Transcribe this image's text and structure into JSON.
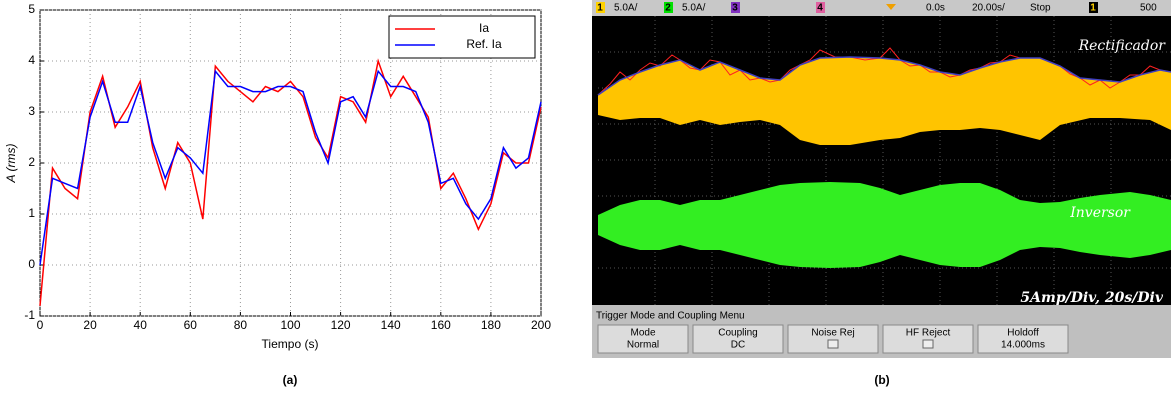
{
  "chart_data": {
    "type": "line",
    "xlabel": "Tiempo (s)",
    "ylabel": "A (rms)",
    "x": [
      0,
      5,
      10,
      15,
      20,
      25,
      30,
      35,
      40,
      45,
      50,
      55,
      60,
      65,
      70,
      75,
      80,
      85,
      90,
      95,
      100,
      105,
      110,
      115,
      120,
      125,
      130,
      135,
      140,
      145,
      150,
      155,
      160,
      165,
      170,
      175,
      180,
      185,
      190,
      195,
      200
    ],
    "series": [
      {
        "name": "Ia",
        "color": "#ff0000",
        "values": [
          -0.8,
          1.9,
          1.5,
          1.3,
          3.0,
          3.7,
          2.7,
          3.1,
          3.6,
          2.3,
          1.5,
          2.4,
          2.0,
          0.9,
          3.9,
          3.6,
          3.4,
          3.2,
          3.5,
          3.4,
          3.6,
          3.3,
          2.5,
          2.1,
          3.3,
          3.2,
          2.8,
          4.0,
          3.3,
          3.7,
          3.3,
          2.9,
          1.5,
          1.8,
          1.3,
          0.7,
          1.2,
          2.2,
          2.0,
          2.0,
          3.1
        ]
      },
      {
        "name": "Ref. Ia",
        "color": "#0000ff",
        "values": [
          0,
          1.7,
          1.6,
          1.5,
          2.9,
          3.6,
          2.8,
          2.8,
          3.5,
          2.4,
          1.7,
          2.3,
          2.1,
          1.8,
          3.8,
          3.5,
          3.5,
          3.4,
          3.4,
          3.5,
          3.5,
          3.4,
          2.6,
          2.0,
          3.2,
          3.3,
          2.9,
          3.8,
          3.5,
          3.5,
          3.4,
          2.8,
          1.6,
          1.7,
          1.2,
          0.9,
          1.3,
          2.3,
          1.9,
          2.1,
          3.2
        ]
      }
    ],
    "xlim": [
      0,
      200
    ],
    "xticks": [
      0,
      20,
      40,
      60,
      80,
      100,
      120,
      140,
      160,
      180,
      200
    ],
    "ylim": [
      -1,
      5
    ],
    "yticks": [
      -1,
      0,
      1,
      2,
      3,
      4,
      5
    ],
    "grid": true,
    "legend": "upper-right"
  },
  "scope": {
    "channels": [
      {
        "num": "1",
        "scale": "5.0A/"
      },
      {
        "num": "2",
        "scale": "5.0A/"
      },
      {
        "num": "3"
      },
      {
        "num": "4"
      }
    ],
    "delay": "0.0s",
    "timebase": "20.00s/",
    "state": "Stop",
    "trigger_channel": "1",
    "trigger_level": "500",
    "labels": [
      "Rectificador",
      "Inversor",
      "5Amp/Div, 20s/Div"
    ],
    "menu_title": "Trigger Mode and Coupling Menu",
    "buttons": [
      {
        "label": "Mode",
        "value": "Normal"
      },
      {
        "label": "Coupling",
        "value": "DC"
      },
      {
        "label": "Noise Rej"
      },
      {
        "label": "HF Reject"
      },
      {
        "label": "Holdoff",
        "value": "14.000ms"
      }
    ]
  },
  "captions": [
    "(a)",
    "(b)"
  ]
}
